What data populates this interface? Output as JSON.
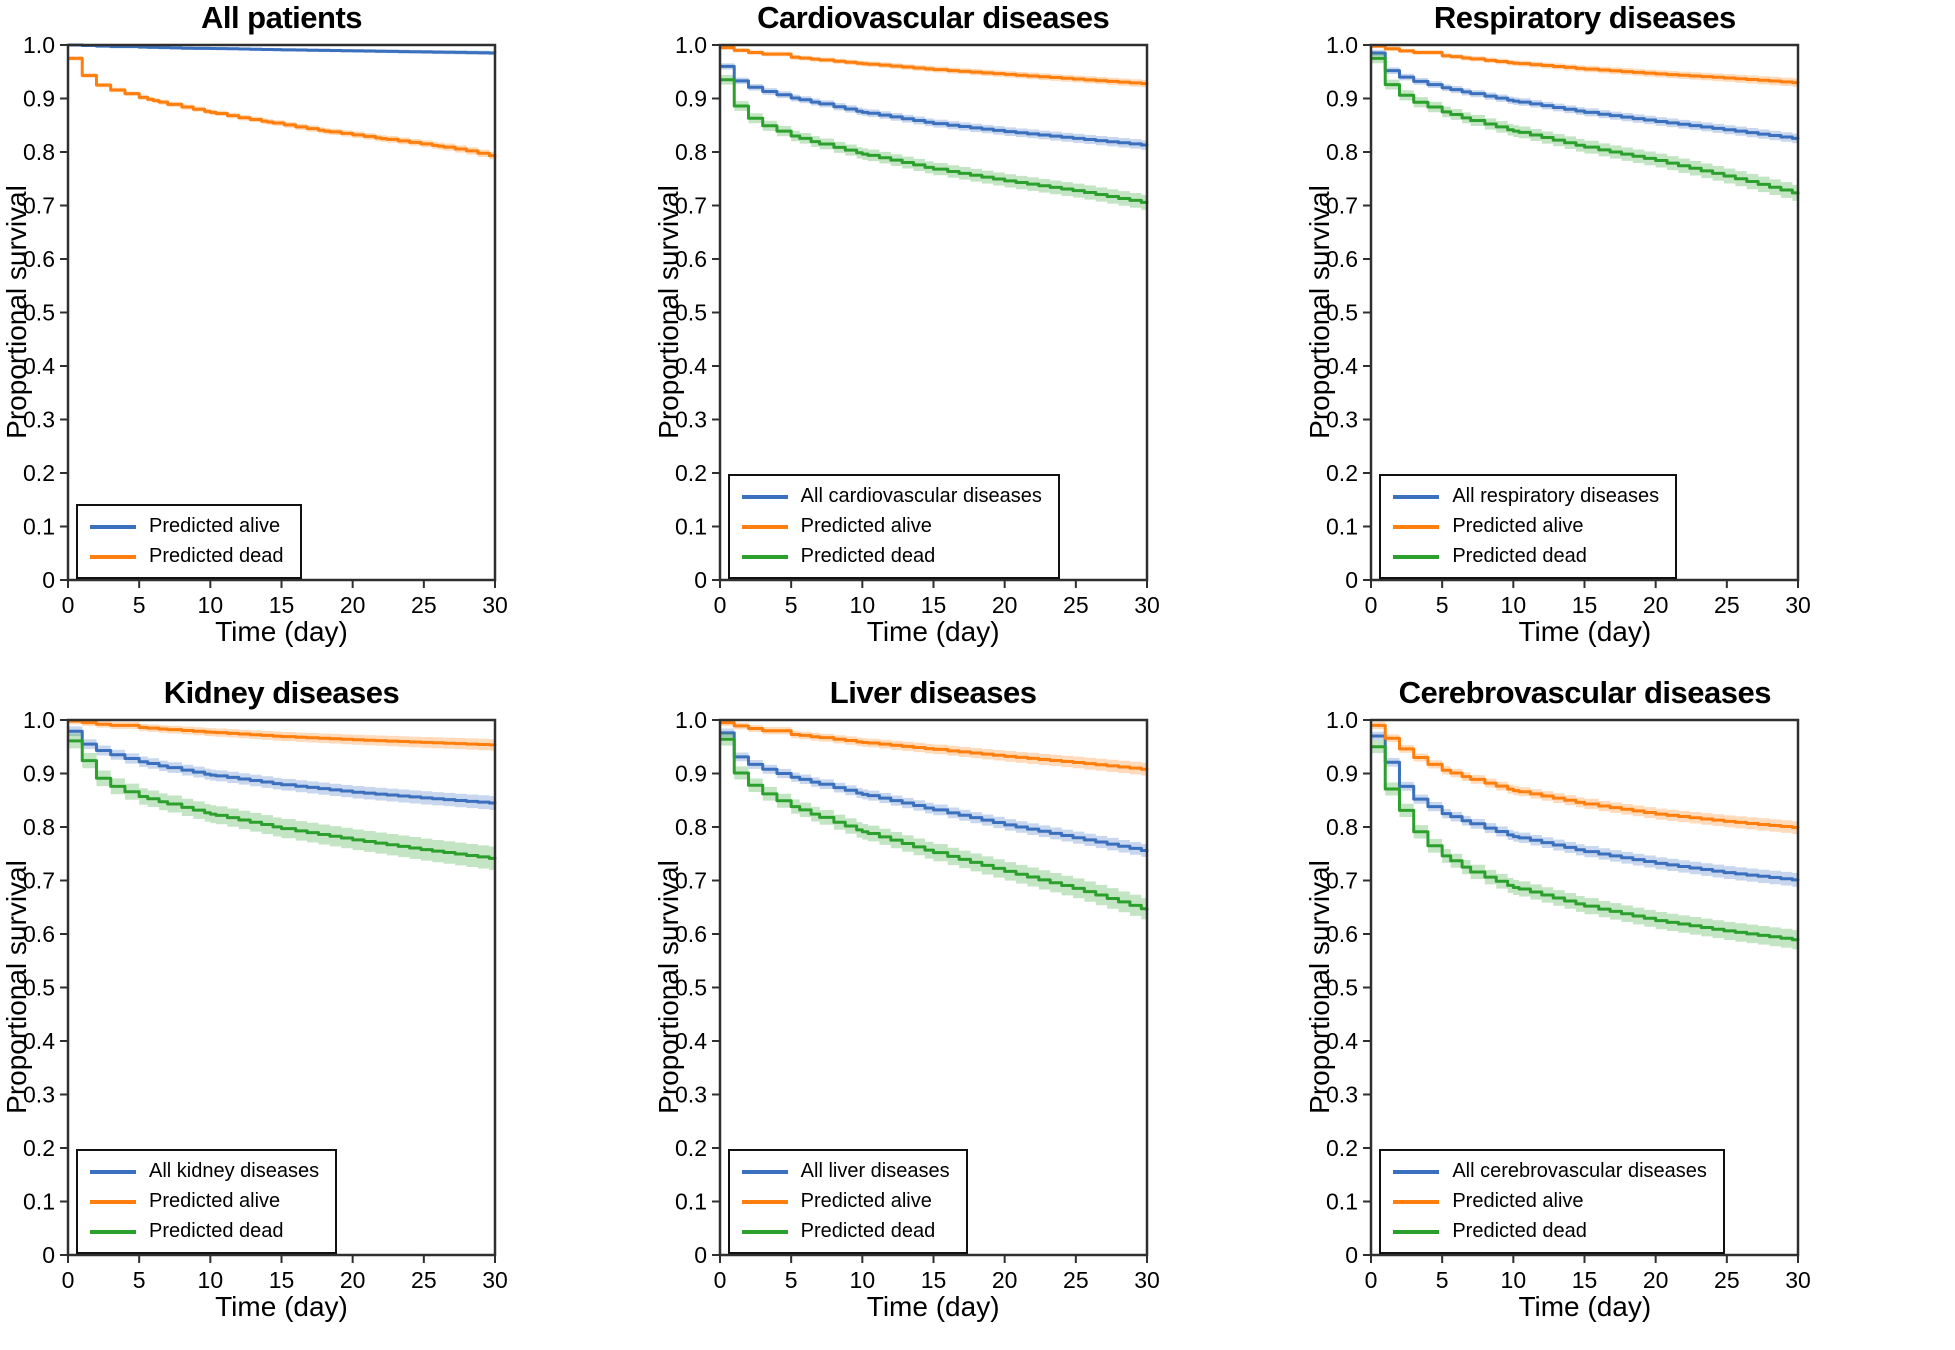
{
  "figure": {
    "xlabel": "Time (day)",
    "ylabel": "Proportional survival",
    "x_tick_labels": [
      "0",
      "5",
      "10",
      "15",
      "20",
      "25",
      "30"
    ],
    "y_tick_labels": [
      "0",
      "0.1",
      "0.2",
      "0.3",
      "0.4",
      "0.5",
      "0.6",
      "0.7",
      "0.8",
      "0.9",
      "1.0"
    ]
  },
  "colors": {
    "blue": "#3a70bd",
    "orange": "#ff7f0e",
    "green": "#2ca02c",
    "axis": "#2f2f2f",
    "text": "#000000",
    "band_opacity": 0.28
  },
  "chart_data": [
    {
      "type": "line",
      "style": "kaplan_meier_step",
      "title": "All patients",
      "xlabel": "Time (day)",
      "ylabel": "Proportional survival",
      "xlim": [
        0,
        30
      ],
      "ylim": [
        0,
        1.0
      ],
      "x_ticks": [
        0,
        5,
        10,
        15,
        20,
        25,
        30
      ],
      "y_ticks": [
        0,
        0.1,
        0.2,
        0.3,
        0.4,
        0.5,
        0.6,
        0.7,
        0.8,
        0.9,
        1.0
      ],
      "grid": false,
      "legend_position": "lower left",
      "series": [
        {
          "name": "Predicted alive",
          "color_key": "blue",
          "x": [
            0,
            1,
            2,
            3,
            5,
            8,
            10,
            15,
            20,
            25,
            30
          ],
          "y": [
            1.0,
            0.999,
            0.998,
            0.997,
            0.996,
            0.994,
            0.9935,
            0.991,
            0.989,
            0.987,
            0.985
          ],
          "band": [
            0.002,
            0.004
          ]
        },
        {
          "name": "Predicted dead",
          "color_key": "orange",
          "x": [
            0,
            1,
            2,
            3,
            4,
            5,
            6,
            7,
            8,
            9,
            10,
            12,
            14,
            16,
            18,
            20,
            22,
            24,
            26,
            28,
            30
          ],
          "y": [
            0.975,
            0.943,
            0.925,
            0.916,
            0.909,
            0.902,
            0.896,
            0.889,
            0.884,
            0.879,
            0.874,
            0.864,
            0.856,
            0.847,
            0.839,
            0.832,
            0.825,
            0.818,
            0.811,
            0.802,
            0.791
          ],
          "band": [
            0.004,
            0.007
          ]
        }
      ]
    },
    {
      "type": "line",
      "style": "kaplan_meier_step",
      "title": "Cardiovascular diseases",
      "xlabel": "Time (day)",
      "ylabel": "Proportional survival",
      "xlim": [
        0,
        30
      ],
      "ylim": [
        0,
        1.0
      ],
      "x_ticks": [
        0,
        5,
        10,
        15,
        20,
        25,
        30
      ],
      "y_ticks": [
        0,
        0.1,
        0.2,
        0.3,
        0.4,
        0.5,
        0.6,
        0.7,
        0.8,
        0.9,
        1.0
      ],
      "grid": false,
      "legend_position": "lower left",
      "series": [
        {
          "name": "All cardiovascular diseases",
          "color_key": "blue",
          "x": [
            0,
            1,
            2,
            3,
            4,
            5,
            7,
            10,
            15,
            20,
            25,
            30
          ],
          "y": [
            0.96,
            0.933,
            0.921,
            0.913,
            0.907,
            0.901,
            0.89,
            0.874,
            0.853,
            0.838,
            0.825,
            0.812
          ],
          "band": [
            0.006,
            0.009
          ]
        },
        {
          "name": "Predicted alive",
          "color_key": "orange",
          "x": [
            0,
            1,
            2,
            3,
            5,
            7,
            10,
            15,
            20,
            25,
            30
          ],
          "y": [
            0.995,
            0.99,
            0.986,
            0.983,
            0.977,
            0.972,
            0.965,
            0.954,
            0.945,
            0.936,
            0.927
          ],
          "band": [
            0.004,
            0.007
          ]
        },
        {
          "name": "Predicted dead",
          "color_key": "green",
          "x": [
            0,
            1,
            2,
            3,
            4,
            5,
            7,
            10,
            15,
            20,
            25,
            30
          ],
          "y": [
            0.935,
            0.886,
            0.863,
            0.849,
            0.839,
            0.83,
            0.815,
            0.796,
            0.768,
            0.746,
            0.727,
            0.704
          ],
          "band": [
            0.009,
            0.014
          ]
        }
      ]
    },
    {
      "type": "line",
      "style": "kaplan_meier_step",
      "title": "Respiratory diseases",
      "xlabel": "Time (day)",
      "ylabel": "Proportional survival",
      "xlim": [
        0,
        30
      ],
      "ylim": [
        0,
        1.0
      ],
      "x_ticks": [
        0,
        5,
        10,
        15,
        20,
        25,
        30
      ],
      "y_ticks": [
        0,
        0.1,
        0.2,
        0.3,
        0.4,
        0.5,
        0.6,
        0.7,
        0.8,
        0.9,
        1.0
      ],
      "grid": false,
      "legend_position": "lower left",
      "series": [
        {
          "name": "All respiratory diseases",
          "color_key": "blue",
          "x": [
            0,
            1,
            2,
            3,
            4,
            5,
            7,
            10,
            15,
            20,
            25,
            30
          ],
          "y": [
            0.985,
            0.952,
            0.94,
            0.932,
            0.926,
            0.92,
            0.909,
            0.895,
            0.874,
            0.857,
            0.841,
            0.824
          ],
          "band": [
            0.006,
            0.009
          ]
        },
        {
          "name": "Predicted alive",
          "color_key": "orange",
          "x": [
            0,
            1,
            2,
            3,
            5,
            7,
            10,
            15,
            20,
            25,
            30
          ],
          "y": [
            0.998,
            0.993,
            0.989,
            0.986,
            0.98,
            0.974,
            0.966,
            0.955,
            0.946,
            0.938,
            0.929
          ],
          "band": [
            0.004,
            0.008
          ]
        },
        {
          "name": "Predicted dead",
          "color_key": "green",
          "x": [
            0,
            1,
            2,
            3,
            4,
            5,
            7,
            10,
            15,
            20,
            25,
            30
          ],
          "y": [
            0.975,
            0.926,
            0.906,
            0.893,
            0.884,
            0.875,
            0.859,
            0.839,
            0.809,
            0.784,
            0.754,
            0.721
          ],
          "band": [
            0.009,
            0.015
          ]
        }
      ]
    },
    {
      "type": "line",
      "style": "kaplan_meier_step",
      "title": "Kidney diseases",
      "xlabel": "Time (day)",
      "ylabel": "Proportional survival",
      "xlim": [
        0,
        30
      ],
      "ylim": [
        0,
        1.0
      ],
      "x_ticks": [
        0,
        5,
        10,
        15,
        20,
        25,
        30
      ],
      "y_ticks": [
        0,
        0.1,
        0.2,
        0.3,
        0.4,
        0.5,
        0.6,
        0.7,
        0.8,
        0.9,
        1.0
      ],
      "grid": false,
      "legend_position": "lower left",
      "series": [
        {
          "name": "All kidney diseases",
          "color_key": "blue",
          "x": [
            0,
            1,
            2,
            3,
            4,
            5,
            7,
            10,
            15,
            20,
            25,
            30
          ],
          "y": [
            0.979,
            0.955,
            0.943,
            0.935,
            0.928,
            0.922,
            0.911,
            0.897,
            0.879,
            0.865,
            0.854,
            0.844
          ],
          "band": [
            0.009,
            0.013
          ]
        },
        {
          "name": "Predicted alive",
          "color_key": "orange",
          "x": [
            0,
            1,
            2,
            3,
            5,
            7,
            10,
            15,
            20,
            25,
            30
          ],
          "y": [
            0.998,
            0.995,
            0.992,
            0.99,
            0.986,
            0.982,
            0.977,
            0.969,
            0.963,
            0.958,
            0.953
          ],
          "band": [
            0.006,
            0.011
          ]
        },
        {
          "name": "Predicted dead",
          "color_key": "green",
          "x": [
            0,
            1,
            2,
            3,
            4,
            5,
            7,
            10,
            15,
            20,
            25,
            30
          ],
          "y": [
            0.961,
            0.924,
            0.891,
            0.876,
            0.866,
            0.857,
            0.843,
            0.824,
            0.797,
            0.776,
            0.757,
            0.74
          ],
          "band": [
            0.014,
            0.022
          ]
        }
      ]
    },
    {
      "type": "line",
      "style": "kaplan_meier_step",
      "title": "Liver diseases",
      "xlabel": "Time (day)",
      "ylabel": "Proportional survival",
      "xlim": [
        0,
        30
      ],
      "ylim": [
        0,
        1.0
      ],
      "x_ticks": [
        0,
        5,
        10,
        15,
        20,
        25,
        30
      ],
      "y_ticks": [
        0,
        0.1,
        0.2,
        0.3,
        0.4,
        0.5,
        0.6,
        0.7,
        0.8,
        0.9,
        1.0
      ],
      "grid": false,
      "legend_position": "lower left",
      "series": [
        {
          "name": "All liver diseases",
          "color_key": "blue",
          "x": [
            0,
            1,
            2,
            3,
            4,
            5,
            7,
            10,
            15,
            20,
            25,
            30
          ],
          "y": [
            0.976,
            0.931,
            0.917,
            0.908,
            0.9,
            0.893,
            0.88,
            0.861,
            0.832,
            0.804,
            0.779,
            0.754
          ],
          "band": [
            0.008,
            0.012
          ]
        },
        {
          "name": "Predicted alive",
          "color_key": "orange",
          "x": [
            0,
            1,
            2,
            3,
            5,
            7,
            10,
            15,
            20,
            25,
            30
          ],
          "y": [
            0.995,
            0.989,
            0.984,
            0.98,
            0.973,
            0.967,
            0.958,
            0.945,
            0.932,
            0.92,
            0.907
          ],
          "band": [
            0.006,
            0.012
          ]
        },
        {
          "name": "Predicted dead",
          "color_key": "green",
          "x": [
            0,
            1,
            2,
            3,
            4,
            5,
            7,
            10,
            15,
            20,
            25,
            30
          ],
          "y": [
            0.964,
            0.901,
            0.878,
            0.862,
            0.849,
            0.838,
            0.818,
            0.791,
            0.752,
            0.717,
            0.684,
            0.644
          ],
          "band": [
            0.012,
            0.02
          ]
        }
      ]
    },
    {
      "type": "line",
      "style": "kaplan_meier_step",
      "title": "Cerebrovascular diseases",
      "xlabel": "Time (day)",
      "ylabel": "Proportional survival",
      "xlim": [
        0,
        30
      ],
      "ylim": [
        0,
        1.0
      ],
      "x_ticks": [
        0,
        5,
        10,
        15,
        20,
        25,
        30
      ],
      "y_ticks": [
        0,
        0.1,
        0.2,
        0.3,
        0.4,
        0.5,
        0.6,
        0.7,
        0.8,
        0.9,
        1.0
      ],
      "grid": false,
      "legend_position": "lower left",
      "series": [
        {
          "name": "All cerebrovascular diseases",
          "color_key": "blue",
          "x": [
            0,
            1,
            2,
            3,
            4,
            5,
            7,
            10,
            15,
            20,
            25,
            30
          ],
          "y": [
            0.97,
            0.921,
            0.876,
            0.852,
            0.838,
            0.825,
            0.806,
            0.782,
            0.754,
            0.732,
            0.714,
            0.7
          ],
          "band": [
            0.008,
            0.013
          ]
        },
        {
          "name": "Predicted alive",
          "color_key": "orange",
          "x": [
            0,
            1,
            2,
            3,
            4,
            5,
            7,
            10,
            15,
            20,
            25,
            30
          ],
          "y": [
            0.99,
            0.966,
            0.946,
            0.93,
            0.917,
            0.906,
            0.889,
            0.868,
            0.843,
            0.824,
            0.81,
            0.798
          ],
          "band": [
            0.007,
            0.012
          ]
        },
        {
          "name": "Predicted dead",
          "color_key": "green",
          "x": [
            0,
            1,
            2,
            3,
            4,
            5,
            7,
            10,
            15,
            20,
            25,
            30
          ],
          "y": [
            0.95,
            0.871,
            0.831,
            0.791,
            0.765,
            0.746,
            0.716,
            0.687,
            0.652,
            0.625,
            0.605,
            0.588
          ],
          "band": [
            0.012,
            0.018
          ]
        }
      ]
    }
  ]
}
